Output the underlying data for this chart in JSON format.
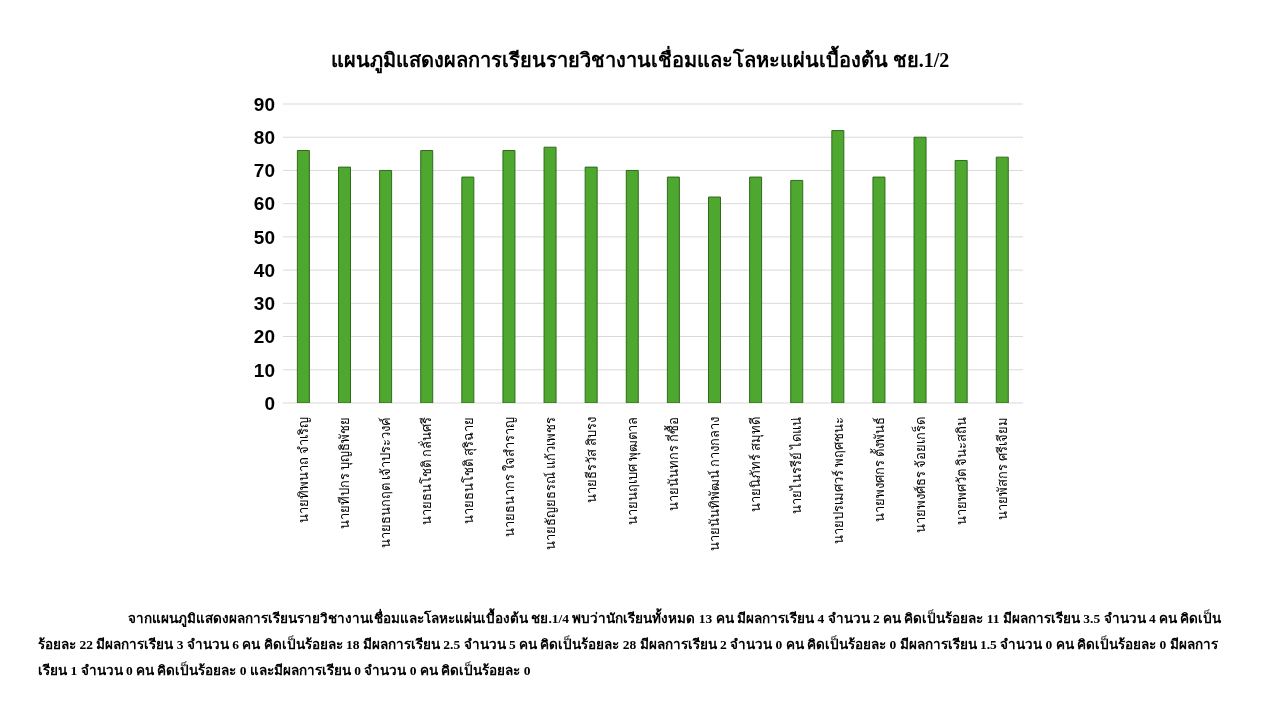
{
  "chart_data": {
    "type": "bar",
    "title": "แผนภูมิแสดงผลการเรียนรายวิชางานเชื่อมและโลหะแผ่นเบื้องต้น ชย.1/2",
    "categories": [
      "นายทิพนาถ จำเริญ",
      "นายทีปกร บุญธิพัชย",
      "นายธนกฤต เจ้าประวงค์",
      "นายธนโชติ กลั่นศรี",
      "นายธนโชติ สุริฉาย",
      "นายธนากร ใจสำราญ",
      "นายธัญยธรณ์ แก้วเพชร",
      "นายธีรวัส สิบรง",
      "นายนฤเบศ พุฒตาล",
      "นายนันทกร กี่ซื้อ",
      "นายนันทิพัฒน์ กางกลาง",
      "นายนิภัทร์ สมุทดี",
      "นายไนรรีย์ ไดแน่",
      "นายปรเมศวร์ พฤศชนะ",
      "นายพงศกร ตั้งพันธ์",
      "นายพงศ์ธร จ้อยเกร็ด",
      "นายพศวัต จินะสถิน",
      "นายพัสกร ศรีเจียม"
    ],
    "values": [
      76,
      71,
      70,
      76,
      68,
      76,
      77,
      71,
      70,
      68,
      62,
      68,
      67,
      82,
      68,
      80,
      73,
      74
    ],
    "color": "#4ea72e",
    "ylim": [
      0,
      90
    ],
    "yticks": [
      0,
      10,
      20,
      30,
      40,
      50,
      60,
      70,
      80,
      90
    ],
    "grid": "y",
    "annotations": [
      "จากแผนภูมิแสดงผลการเรียนรายวิชางานเชื่อมและโลหะแผ่นเบื้องต้น ชย.1/4 พบว่านักเรียนทั้งหมด 13 คน มีผลการเรียน 4 จำนวน 2 คน คิดเป็นร้อยละ 11 มีผลการเรียน 3.5 จำนวน 4 คน คิดเป็นร้อยละ  22 มีผลการเรียน 3 จำนวน 6 คน คิดเป็นร้อยละ 18 มีผลการเรียน 2.5 จำนวน 5 คน คิดเป็นร้อยละ 28 มีผลการเรียน 2 จำนวน 0 คน คิดเป็นร้อยละ 0 มีผลการเรียน 1.5 จำนวน 0 คน คิดเป็นร้อยละ 0 มีผลการเรียน 1 จำนวน 0 คน คิดเป็นร้อยละ 0 และมีผลการเรียน 0 จำนวน 0 คน คิดเป็นร้อยละ  0"
    ]
  }
}
